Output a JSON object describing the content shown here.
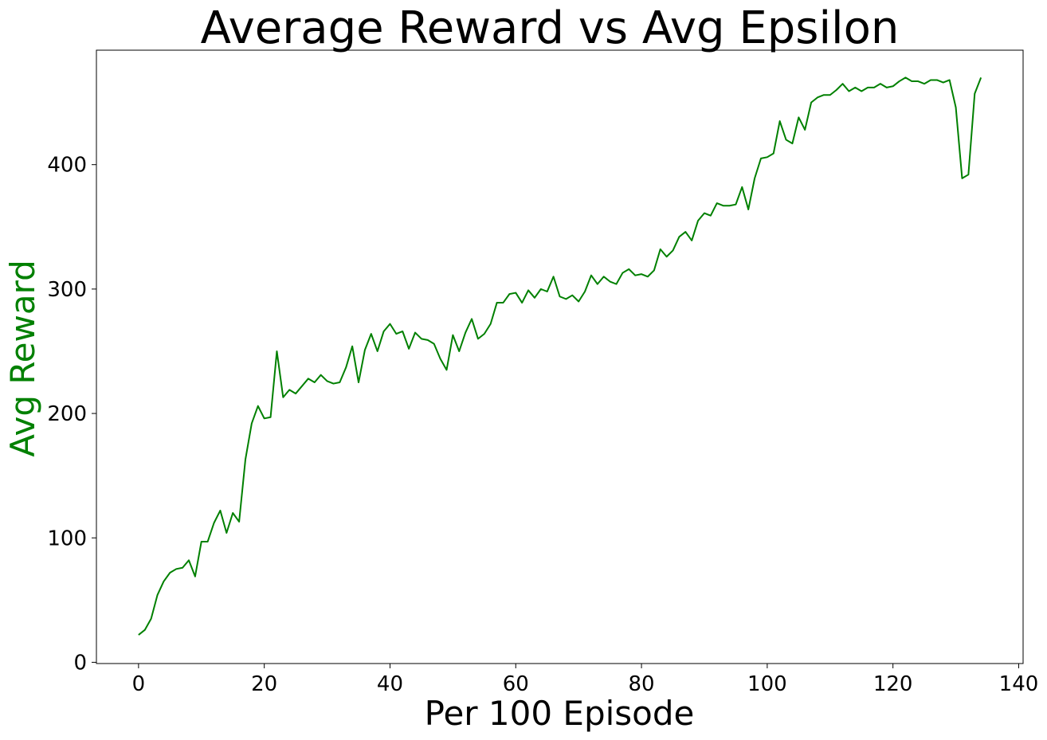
{
  "chart_data": {
    "type": "line",
    "title": "Average Reward vs Avg Epsilon",
    "xlabel": "Per 100 Episode",
    "ylabel": "Avg Reward",
    "xlim": [
      -6.7,
      140.7
    ],
    "ylim": [
      -1,
      492
    ],
    "grid": false,
    "x_ticks": [
      0,
      20,
      40,
      60,
      80,
      100,
      120,
      140
    ],
    "y_ticks": [
      0,
      100,
      200,
      300,
      400
    ],
    "colors": {
      "series": "#008000",
      "ylabel": "#008000",
      "axes": "#000000"
    },
    "series": [
      {
        "x": [
          0,
          1,
          2,
          3,
          4,
          5,
          6,
          7,
          8,
          9,
          10,
          11,
          12,
          13,
          14,
          15,
          16,
          17,
          18,
          19,
          20,
          21,
          22,
          23,
          24,
          25,
          26,
          27,
          28,
          29,
          30,
          31,
          32,
          33,
          34,
          35,
          36,
          37,
          38,
          39,
          40,
          41,
          42,
          43,
          44,
          45,
          46,
          47,
          48,
          49,
          50,
          51,
          52,
          53,
          54,
          55,
          56,
          57,
          58,
          59,
          60,
          61,
          62,
          63,
          64,
          65,
          66,
          67,
          68,
          69,
          70,
          71,
          72,
          73,
          74,
          75,
          76,
          77,
          78,
          79,
          80,
          81,
          82,
          83,
          84,
          85,
          86,
          87,
          88,
          89,
          90,
          91,
          92,
          93,
          94,
          95,
          96,
          97,
          98,
          99,
          100,
          101,
          102,
          103,
          104,
          105,
          106,
          107,
          108,
          109,
          110,
          111,
          112,
          113,
          114,
          115,
          116,
          117,
          118,
          119,
          120,
          121,
          122,
          123,
          124,
          125,
          126,
          127,
          128,
          129,
          130,
          131,
          132,
          133,
          134
        ],
        "values": [
          22,
          26,
          35,
          54,
          65,
          72,
          75,
          76,
          82,
          69,
          97,
          97,
          112,
          122,
          104,
          120,
          113,
          163,
          192,
          206,
          196,
          197,
          250,
          213,
          219,
          216,
          222,
          228,
          225,
          231,
          226,
          224,
          225,
          237,
          254,
          225,
          251,
          264,
          250,
          266,
          272,
          264,
          266,
          252,
          265,
          260,
          259,
          256,
          244,
          235,
          263,
          250,
          265,
          276,
          260,
          264,
          272,
          289,
          289,
          296,
          297,
          289,
          299,
          293,
          300,
          298,
          310,
          294,
          292,
          295,
          290,
          298,
          311,
          304,
          310,
          306,
          304,
          313,
          316,
          311,
          312,
          310,
          315,
          332,
          326,
          331,
          342,
          346,
          339,
          355,
          361,
          359,
          369,
          367,
          367,
          368,
          382,
          364,
          389,
          405,
          406,
          409,
          435,
          420,
          417,
          438,
          428,
          450,
          454,
          456,
          456,
          460,
          465,
          459,
          462,
          459,
          462,
          462,
          465,
          462,
          463,
          467,
          470,
          467,
          467,
          465,
          468,
          468,
          466,
          468,
          446,
          389,
          392,
          457,
          470
        ]
      }
    ]
  }
}
